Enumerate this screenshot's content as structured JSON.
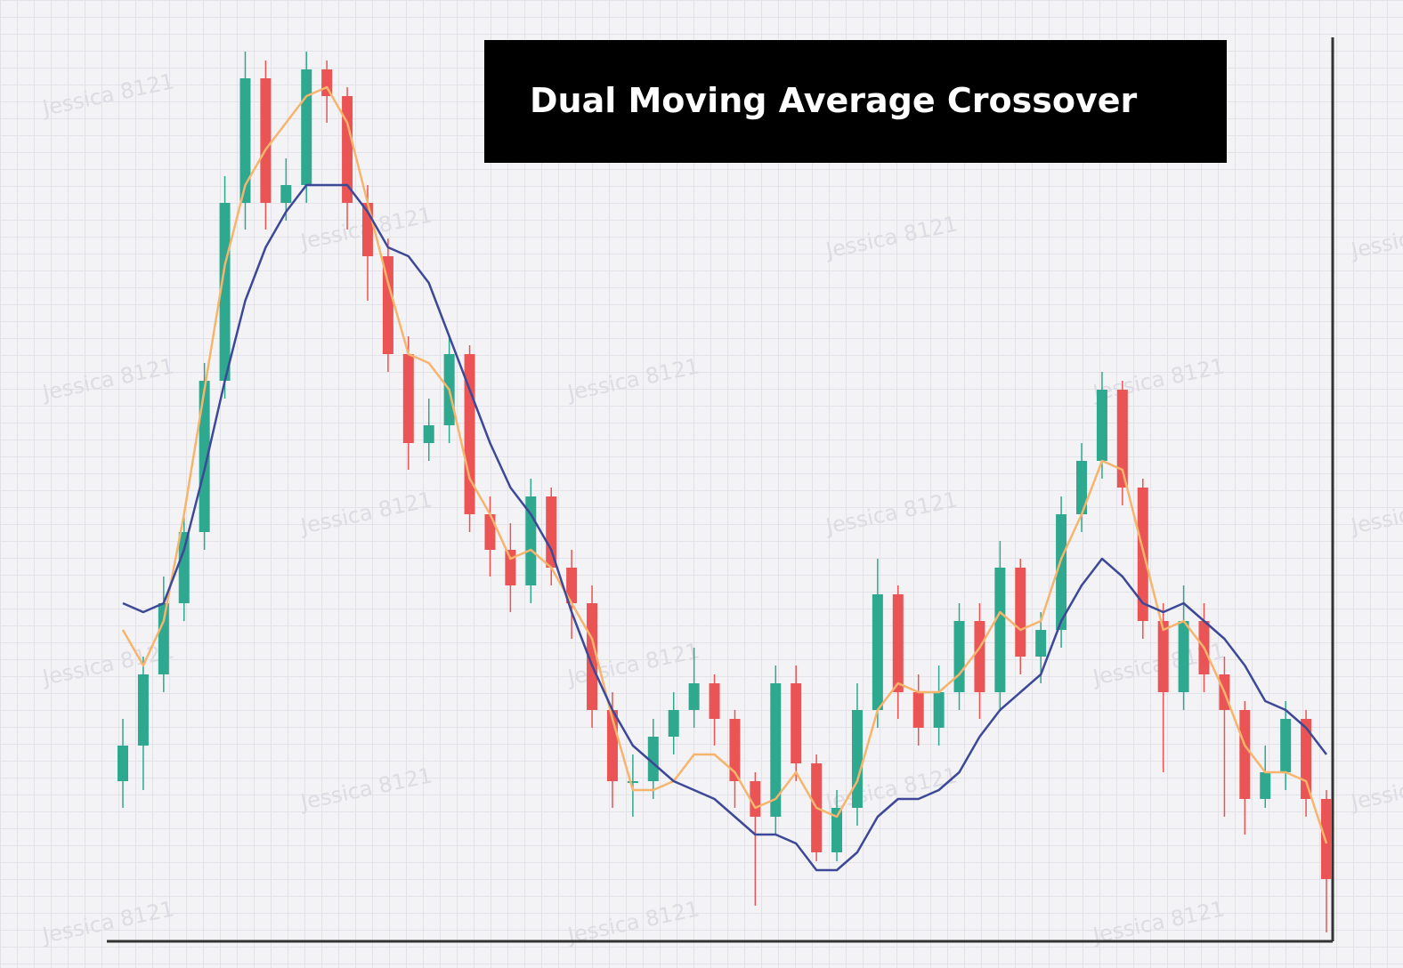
{
  "chart_data": {
    "type": "candlestick",
    "title": "Dual Moving Average Crossover",
    "watermark": "Jessica 8121",
    "ylim": [
      0,
      100
    ],
    "up_color": "#2ea88f",
    "down_color": "#ea5454",
    "candles": {
      "open": [
        18,
        22,
        30,
        38,
        46,
        63,
        83,
        97,
        83,
        85,
        98,
        95,
        83,
        77,
        66,
        56,
        58,
        66,
        48,
        44,
        40,
        50,
        42,
        38,
        26,
        18,
        18,
        23,
        26,
        29,
        25,
        18,
        14,
        29,
        20,
        10,
        15,
        26,
        39,
        28,
        24,
        28,
        36,
        28,
        42,
        32,
        35,
        48,
        54,
        62,
        51,
        36,
        28,
        36,
        30,
        26,
        16,
        19,
        25,
        16
      ],
      "high": [
        25,
        32,
        41,
        48,
        65,
        86,
        100,
        99,
        88,
        100,
        99,
        96,
        85,
        79,
        68,
        61,
        68,
        67,
        50,
        47,
        52,
        51,
        44,
        40,
        28,
        21,
        25,
        28,
        33,
        30,
        26,
        19,
        31,
        31,
        21,
        17,
        29,
        43,
        40,
        30,
        31,
        38,
        38,
        45,
        43,
        37,
        50,
        56,
        64,
        63,
        52,
        38,
        40,
        38,
        32,
        27,
        22,
        27,
        26,
        17
      ],
      "low": [
        15,
        17,
        28,
        36,
        44,
        61,
        80,
        80,
        81,
        83,
        92,
        80,
        72,
        64,
        53,
        54,
        56,
        46,
        41,
        37,
        38,
        40,
        34,
        24,
        15,
        14,
        16,
        21,
        24,
        22,
        15,
        4,
        12,
        18,
        9,
        9,
        13,
        24,
        25,
        22,
        22,
        26,
        25,
        26,
        30,
        29,
        33,
        46,
        52,
        49,
        34,
        19,
        26,
        28,
        14,
        12,
        15,
        17,
        14,
        1
      ],
      "close": [
        22,
        30,
        38,
        46,
        63,
        83,
        97,
        83,
        85,
        98,
        95,
        83,
        77,
        66,
        56,
        58,
        66,
        48,
        44,
        40,
        50,
        42,
        38,
        26,
        18,
        18,
        23,
        26,
        29,
        25,
        18,
        14,
        29,
        20,
        10,
        15,
        26,
        39,
        28,
        24,
        28,
        36,
        28,
        42,
        32,
        35,
        48,
        54,
        62,
        51,
        36,
        28,
        36,
        30,
        26,
        16,
        19,
        25,
        16,
        7
      ]
    },
    "lines": [
      {
        "color": "#f7b46c",
        "values": [
          35,
          31,
          36,
          48,
          62,
          76,
          85,
          89,
          92,
          95,
          96,
          92,
          83,
          74,
          66,
          65,
          62,
          52,
          48,
          43,
          44,
          42,
          38,
          34,
          25,
          17,
          17,
          18,
          21,
          21,
          19,
          15,
          16,
          19,
          15,
          14,
          18,
          26,
          29,
          28,
          28,
          30,
          33,
          37,
          35,
          36,
          43,
          48,
          54,
          53,
          44,
          35,
          36,
          33,
          28,
          22,
          19,
          19,
          18,
          11
        ]
      },
      {
        "color": "#3d4896",
        "values": [
          38,
          37,
          38,
          44,
          53,
          63,
          72,
          78,
          82,
          85,
          85,
          85,
          82,
          78,
          77,
          74,
          68,
          62,
          56,
          51,
          48,
          44,
          37,
          31,
          26,
          22,
          20,
          18,
          17,
          16,
          14,
          12,
          12,
          11,
          8,
          8,
          10,
          14,
          16,
          16,
          17,
          19,
          23,
          26,
          28,
          30,
          36,
          40,
          43,
          41,
          38,
          37,
          38,
          36,
          34,
          31,
          27,
          26,
          24,
          21
        ]
      }
    ]
  }
}
